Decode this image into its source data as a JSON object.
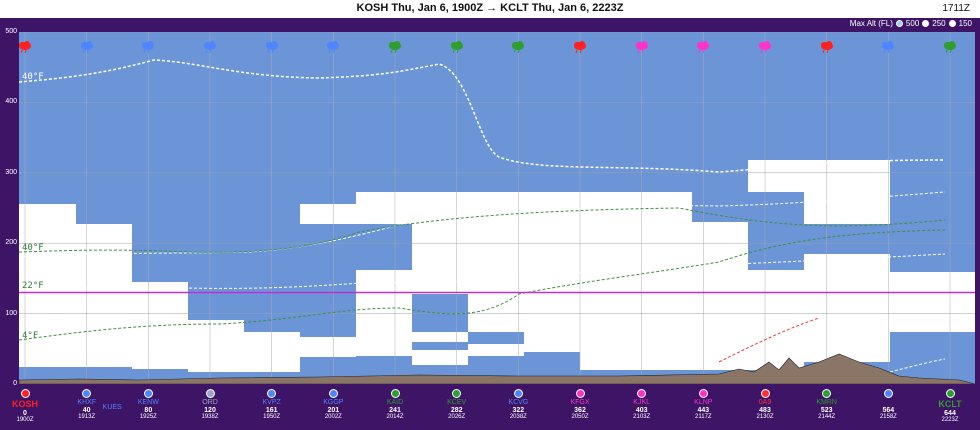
{
  "header": {
    "title": "KOSH Thu, Jan 6, 1900Z → KCLT Thu, Jan 6, 2223Z",
    "clock": "1711Z"
  },
  "max_alt": {
    "label": "Max Alt (FL)",
    "options": [
      {
        "label": "500",
        "selected": true,
        "color": "#9ad0ff"
      },
      {
        "label": "250",
        "selected": false,
        "color": "#ffffff"
      },
      {
        "label": "150",
        "selected": false,
        "color": "#ffffff"
      }
    ]
  },
  "y_axis": {
    "ticks": [
      "500",
      "400",
      "300",
      "200",
      "100",
      "0"
    ],
    "max": 500
  },
  "colors": {
    "cloud": "#6b95d6",
    "clear": "#ffffff",
    "route": "#c02ed6",
    "terrain": "#8a7566",
    "frame": "#3e1466"
  },
  "route_altitude": 130,
  "isotherms": [
    {
      "label": "40°F",
      "color": "#ffffff"
    },
    {
      "label": "40°F",
      "color": "#2e7d32"
    },
    {
      "label": "22°F",
      "color": "#2e7d32"
    },
    {
      "label": "4°F",
      "color": "#2e7d32"
    }
  ],
  "stations": [
    {
      "dist": "0",
      "time": "1900Z",
      "code": "KOSH",
      "color": "#ff2020",
      "icon": "circle-icon",
      "endpoint": true
    },
    {
      "dist": "40",
      "time": "1913Z",
      "code": "KHXF",
      "color": "#4e86ff",
      "extra": "KUES",
      "icon": "circle-icon"
    },
    {
      "dist": "80",
      "time": "1925Z",
      "code": "KENW",
      "color": "#4e86ff",
      "icon": "circle-icon"
    },
    {
      "dist": "120",
      "time": "1938Z",
      "code": "ORD",
      "color": "#9aa5c8",
      "icon": "circle-icon"
    },
    {
      "dist": "161",
      "time": "1950Z",
      "code": "KVPZ",
      "color": "#4e86ff",
      "icon": "circle-icon"
    },
    {
      "dist": "201",
      "time": "2002Z",
      "code": "KGGP",
      "color": "#4e86ff",
      "icon": "circle-icon"
    },
    {
      "dist": "241",
      "time": "2014Z",
      "code": "KAID",
      "color": "#2e9e2e",
      "icon": "circle-icon"
    },
    {
      "dist": "282",
      "time": "2026Z",
      "code": "KCEV",
      "color": "#2e9e2e",
      "icon": "circle-icon"
    },
    {
      "dist": "322",
      "time": "2038Z",
      "code": "KCVG",
      "color": "#4e86ff",
      "icon": "circle-icon"
    },
    {
      "dist": "362",
      "time": "2050Z",
      "code": "KFGX",
      "color": "#ff33cc",
      "icon": "circle-icon"
    },
    {
      "dist": "403",
      "time": "2103Z",
      "code": "KJKL",
      "color": "#ff33cc",
      "icon": "circle-icon"
    },
    {
      "dist": "443",
      "time": "2117Z",
      "code": "KLNP",
      "color": "#ff33cc",
      "icon": "circle-icon"
    },
    {
      "dist": "483",
      "time": "2130Z",
      "code": "0A9",
      "color": "#ff3333",
      "icon": "circle-icon"
    },
    {
      "dist": "523",
      "time": "2144Z",
      "code": "KMRN",
      "color": "#2e9e2e",
      "icon": "circle-icon"
    },
    {
      "dist": "564",
      "time": "2158Z",
      "code": "",
      "color": "#4e86ff",
      "icon": "circle-icon"
    },
    {
      "dist": "644",
      "time": "2223Z",
      "code": "KCLT",
      "color": "#2e9e2e",
      "icon": "circle-icon",
      "endpoint": true
    }
  ],
  "weather_icons": [
    {
      "name": "rain-cloud-icon",
      "color": "#ff2020"
    },
    {
      "name": "rain-cloud-icon",
      "color": "#4e86ff"
    },
    {
      "name": "rain-cloud-icon",
      "color": "#4e86ff"
    },
    {
      "name": "snow-cloud-icon",
      "color": "#4e86ff"
    },
    {
      "name": "snow-cloud-icon",
      "color": "#4e86ff"
    },
    {
      "name": "snow-cloud-icon",
      "color": "#4e86ff"
    },
    {
      "name": "snow-cloud-icon",
      "color": "#2e9e2e"
    },
    {
      "name": "rain-cloud-icon",
      "color": "#2e9e2e"
    },
    {
      "name": "rain-cloud-icon",
      "color": "#2e9e2e"
    },
    {
      "name": "snow-cloud-icon",
      "color": "#ff2020"
    },
    {
      "name": "snow-cloud-icon",
      "color": "#ff33cc"
    },
    {
      "name": "snow-cloud-icon",
      "color": "#ff33cc"
    },
    {
      "name": "snow-cloud-icon",
      "color": "#ff33cc"
    },
    {
      "name": "snow-cloud-icon",
      "color": "#ff2020"
    },
    {
      "name": "snow-cloud-icon",
      "color": "#4e86ff"
    },
    {
      "name": "snow-cloud-icon",
      "color": "#2e9e2e"
    }
  ]
}
